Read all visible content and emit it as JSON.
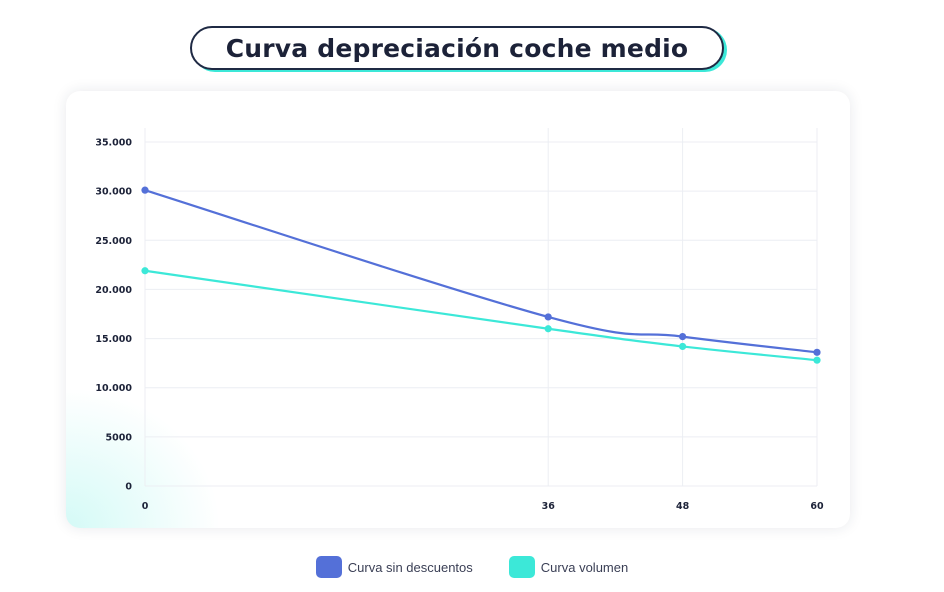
{
  "header": {
    "title": "Curva depreciación coche medio"
  },
  "chart_data": {
    "type": "line",
    "title": "Curva depreciación coche medio",
    "xlabel": "",
    "ylabel": "",
    "x": [
      0,
      36,
      48,
      60
    ],
    "x_tick_labels": [
      "0",
      "36",
      "48",
      "60"
    ],
    "y_tick_values": [
      0,
      5000,
      10000,
      15000,
      20000,
      25000,
      30000,
      35000
    ],
    "y_tick_labels": [
      "0",
      "5000",
      "10.000",
      "15.000",
      "20.000",
      "25.000",
      "30.000",
      "35.000"
    ],
    "ylim": [
      0,
      35000
    ],
    "grid": true,
    "legend_position": "bottom",
    "series": [
      {
        "name": "Curva sin descuentos",
        "color": "#5470d8",
        "values": [
          30100,
          17200,
          15200,
          13600
        ]
      },
      {
        "name": "Curva volumen",
        "color": "#3ce8d8",
        "values": [
          21900,
          16000,
          14200,
          12800
        ]
      }
    ]
  }
}
